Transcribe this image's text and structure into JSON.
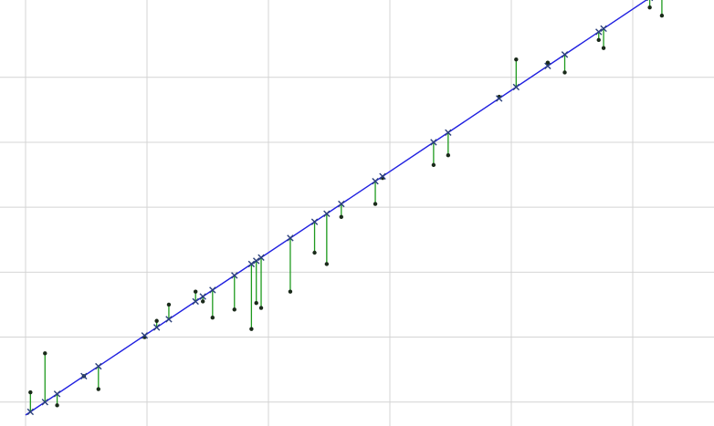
{
  "chart_data": {
    "type": "scatter",
    "title": "",
    "xlabel": "",
    "ylabel": "",
    "xlim": [
      0,
      15.3
    ],
    "ylim": [
      0,
      12.5
    ],
    "grid": true,
    "x_grid": [
      0.0,
      2.5,
      5.0,
      7.5,
      10.0,
      12.5
    ],
    "y_grid": [
      0.4,
      2.4,
      4.4,
      6.4,
      8.4,
      10.4
    ],
    "fit_line": {
      "slope": 1.0,
      "intercept": 0.0,
      "x_range": [
        0.0,
        14.3
      ]
    },
    "colors": {
      "fit_line": "#1f1fe0",
      "residual": "#1e9a1e",
      "observed": "#1a2a1a",
      "predicted": "#2a3f7a",
      "grid": "#d4d4d4"
    },
    "series": [
      {
        "x": [
          0.1,
          0.4,
          0.65,
          1.2,
          1.5,
          2.45,
          2.7,
          2.95,
          3.5,
          3.65,
          3.85,
          4.3,
          4.65,
          4.75,
          4.85,
          5.45,
          5.95,
          6.2,
          6.5,
          7.2,
          7.35,
          8.4,
          8.7,
          9.75,
          10.1,
          10.75,
          11.1,
          11.8,
          11.9,
          12.85,
          13.1
        ],
        "observed": [
          0.7,
          1.9,
          0.3,
          1.2,
          0.8,
          2.4,
          2.9,
          3.4,
          3.8,
          3.5,
          3.0,
          3.25,
          2.65,
          3.45,
          3.3,
          3.8,
          5.0,
          4.65,
          6.1,
          6.5,
          7.3,
          7.7,
          8.0,
          9.8,
          10.95,
          10.85,
          10.55,
          11.55,
          11.3,
          12.55,
          12.3
        ],
        "predicted": [
          0.1,
          0.4,
          0.65,
          1.2,
          1.5,
          2.45,
          2.7,
          2.95,
          3.5,
          3.65,
          3.85,
          4.3,
          4.65,
          4.75,
          4.85,
          5.45,
          5.95,
          6.2,
          6.5,
          7.2,
          7.35,
          8.4,
          8.7,
          9.75,
          10.1,
          10.75,
          11.1,
          11.8,
          11.9,
          12.85,
          13.1
        ]
      }
    ]
  }
}
